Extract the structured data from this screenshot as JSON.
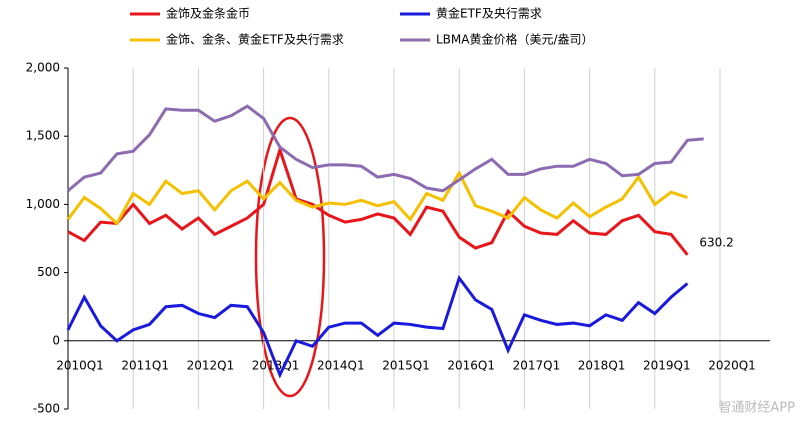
{
  "chart_data": {
    "type": "line",
    "categories": [
      "2010Q1",
      null,
      null,
      null,
      "2011Q1",
      null,
      null,
      null,
      "2012Q1",
      null,
      null,
      null,
      "2013Q1",
      null,
      null,
      null,
      "2014Q1",
      null,
      null,
      null,
      "2015Q1",
      null,
      null,
      null,
      "2016Q1",
      null,
      null,
      null,
      "2017Q1",
      null,
      null,
      null,
      "2018Q1",
      null,
      null,
      null,
      "2019Q1",
      null,
      null,
      null,
      "2020Q1"
    ],
    "series": [
      {
        "name": "金饰及金条金币",
        "color": "#e8161b",
        "values": [
          800,
          735,
          870,
          860,
          1000,
          860,
          920,
          820,
          900,
          780,
          840,
          900,
          1000,
          1400,
          1040,
          1000,
          920,
          870,
          890,
          930,
          900,
          780,
          980,
          950,
          760,
          680,
          720,
          950,
          840,
          790,
          780,
          880,
          790,
          780,
          880,
          920,
          800,
          780,
          630.2,
          null,
          null
        ],
        "value_labels": [
          null,
          null,
          null,
          null,
          null,
          null,
          null,
          null,
          null,
          null,
          null,
          null,
          null,
          null,
          null,
          null,
          null,
          null,
          null,
          null,
          null,
          null,
          null,
          null,
          null,
          null,
          null,
          null,
          null,
          null,
          null,
          null,
          null,
          null,
          null,
          null,
          null,
          null,
          "630.2",
          null,
          null
        ]
      },
      {
        "name": "黄金ETF及央行需求",
        "color": "#1a1adf",
        "values": [
          80,
          320,
          110,
          0,
          80,
          120,
          250,
          260,
          200,
          170,
          260,
          250,
          60,
          -250,
          0,
          -40,
          100,
          130,
          130,
          40,
          130,
          120,
          100,
          90,
          460,
          300,
          230,
          -70,
          190,
          150,
          120,
          130,
          110,
          190,
          150,
          280,
          200,
          320,
          420,
          null,
          null
        ]
      },
      {
        "name": "金饰、金条、黄金ETF及央行需求",
        "color": "#f5c000",
        "values": [
          890,
          1050,
          970,
          860,
          1080,
          1000,
          1170,
          1080,
          1100,
          960,
          1100,
          1170,
          1040,
          1160,
          1030,
          980,
          1010,
          1000,
          1030,
          990,
          1020,
          890,
          1080,
          1030,
          1230,
          990,
          950,
          900,
          1050,
          960,
          900,
          1010,
          910,
          980,
          1040,
          1200,
          1000,
          1090,
          1050,
          null,
          null
        ]
      },
      {
        "name": "LBMA黄金价格（美元/盎司）",
        "color": "#8c6bb1",
        "values": [
          1100,
          1200,
          1230,
          1370,
          1390,
          1510,
          1700,
          1690,
          1690,
          1610,
          1650,
          1720,
          1630,
          1420,
          1330,
          1270,
          1290,
          1290,
          1280,
          1200,
          1220,
          1190,
          1120,
          1100,
          1180,
          1260,
          1330,
          1220,
          1220,
          1260,
          1280,
          1280,
          1330,
          1300,
          1210,
          1220,
          1300,
          1310,
          1470,
          1480,
          null
        ]
      }
    ],
    "ylim": [
      -500,
      2000
    ],
    "yticks": [
      {
        "value": 2000,
        "label": "2,000"
      },
      {
        "value": 1500,
        "label": "1,500"
      },
      {
        "value": 1000,
        "label": "1,000"
      },
      500,
      0,
      -500
    ],
    "grid": true,
    "watermark": "智通财经APP"
  }
}
